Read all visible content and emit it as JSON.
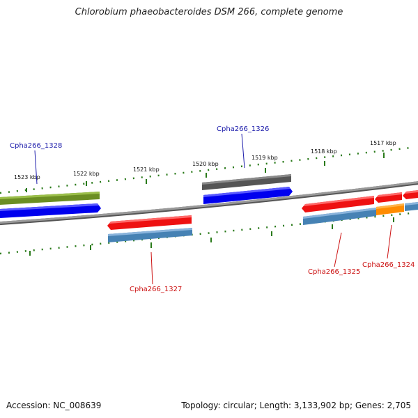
{
  "title": "Chlorobium phaeobacteroides DSM 266, complete genome",
  "footer": {
    "accession": "Accession: NC_008639",
    "info": "Topology: circular; Length: 3,133,902 bp; Genes: 2,705"
  },
  "ticks": [
    "1523 kbp",
    "1522 kbp",
    "1521 kbp",
    "1520 kbp",
    "1519 kbp",
    "1518 kbp",
    "1517 kbp"
  ],
  "genes": [
    {
      "name": "Cpha266_1328",
      "strand": "forward",
      "label_color": "#1a1aaa"
    },
    {
      "name": "Cpha266_1327",
      "strand": "reverse",
      "label_color": "#cc1111"
    },
    {
      "name": "Cpha266_1326",
      "strand": "forward",
      "label_color": "#1a1aaa"
    },
    {
      "name": "Cpha266_1325",
      "strand": "reverse",
      "label_color": "#cc1111"
    },
    {
      "name": "Cpha266_1324",
      "strand": "reverse",
      "label_color": "#cc1111"
    }
  ],
  "colors": {
    "backbone": "#8a8a8a",
    "tick": "#2a7a1a",
    "forward_cds": "#0000ee",
    "reverse_cds": "#ee1111",
    "feature_green": "#6b8e23",
    "feature_gray": "#5a5a5a",
    "feature_steelblue": "#4682b4",
    "feature_orange": "#ff8c00"
  }
}
